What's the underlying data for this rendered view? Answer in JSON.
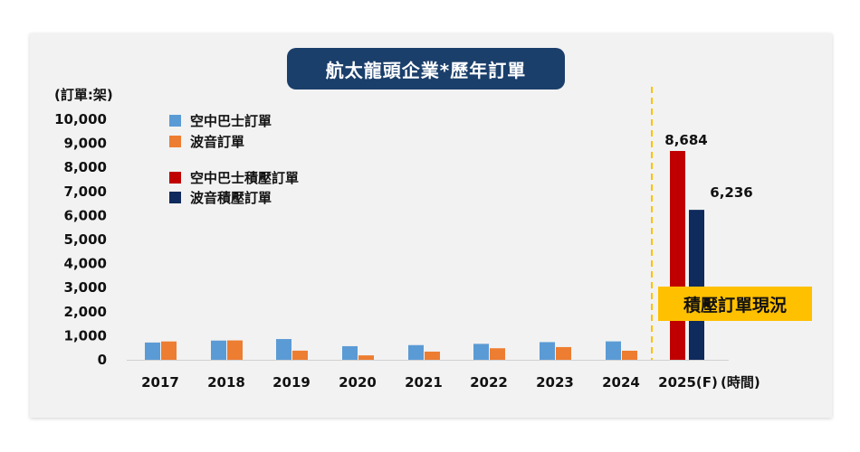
{
  "chart_data": {
    "type": "bar",
    "title": "航太龍頭企業*歷年訂單",
    "ylabel": "(訂單:架)",
    "xlabel": "(時間)",
    "ylim": [
      0,
      10000
    ],
    "yticks": [
      "0",
      "1,000",
      "2,000",
      "3,000",
      "4,000",
      "5,000",
      "6,000",
      "7,000",
      "8,000",
      "9,000",
      "10,000"
    ],
    "categories": [
      "2017",
      "2018",
      "2019",
      "2020",
      "2021",
      "2022",
      "2023",
      "2024",
      "2025(F)"
    ],
    "series": [
      {
        "name": "空中巴士訂單",
        "color": "#5b9bd5",
        "values": [
          718,
          800,
          863,
          566,
          611,
          663,
          735,
          766,
          null
        ]
      },
      {
        "name": "波音訂單",
        "color": "#ed7d31",
        "values": [
          763,
          806,
          380,
          184,
          340,
          480,
          529,
          377,
          null
        ]
      },
      {
        "name": "空中巴士積壓訂單",
        "color": "#c00000",
        "values": [
          null,
          null,
          null,
          null,
          null,
          null,
          null,
          null,
          8684
        ]
      },
      {
        "name": "波音積壓訂單",
        "color": "#0f2a5c",
        "values": [
          null,
          null,
          null,
          null,
          null,
          null,
          null,
          null,
          6236
        ]
      }
    ],
    "data_labels": [
      "8,684",
      "6,236"
    ],
    "annotation": "積壓訂單現況",
    "legend_position": "top-left",
    "grid": false
  }
}
